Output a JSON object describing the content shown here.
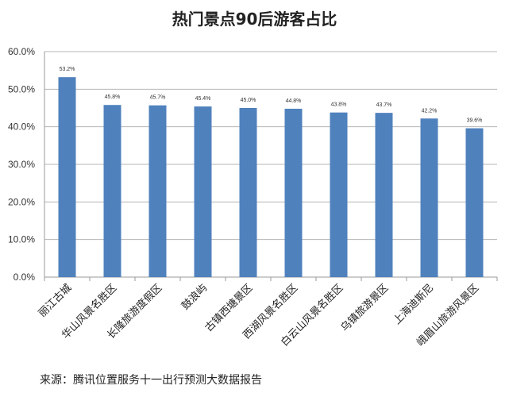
{
  "chart_data": {
    "type": "bar",
    "title": "热门景点90后游客占比",
    "categories": [
      "丽江古城",
      "华山风景名胜区",
      "长隆旅游度假区",
      "鼓浪屿",
      "古镇西塘景区",
      "西湖风景名胜区",
      "白云山风景名胜区",
      "乌镇旅游景区",
      "上海迪斯尼",
      "峨眉山旅游风景区"
    ],
    "values": [
      53.2,
      45.8,
      45.7,
      45.4,
      45.0,
      44.8,
      43.8,
      43.7,
      42.2,
      39.6
    ],
    "data_labels": [
      "53.2%",
      "45.8%",
      "45.7%",
      "45.4%",
      "45.0%",
      "44.8%",
      "43.8%",
      "43.7%",
      "42.2%",
      "39.6%"
    ],
    "yticks": [
      "0.0%",
      "10.0%",
      "20.0%",
      "30.0%",
      "40.0%",
      "50.0%",
      "60.0%"
    ],
    "ylim": [
      0,
      60
    ],
    "xlabel": "",
    "ylabel": "",
    "grid": true,
    "bar_color": "#4f81bd"
  },
  "source": "来源：腾讯位置服务十一出行预测大数据报告"
}
